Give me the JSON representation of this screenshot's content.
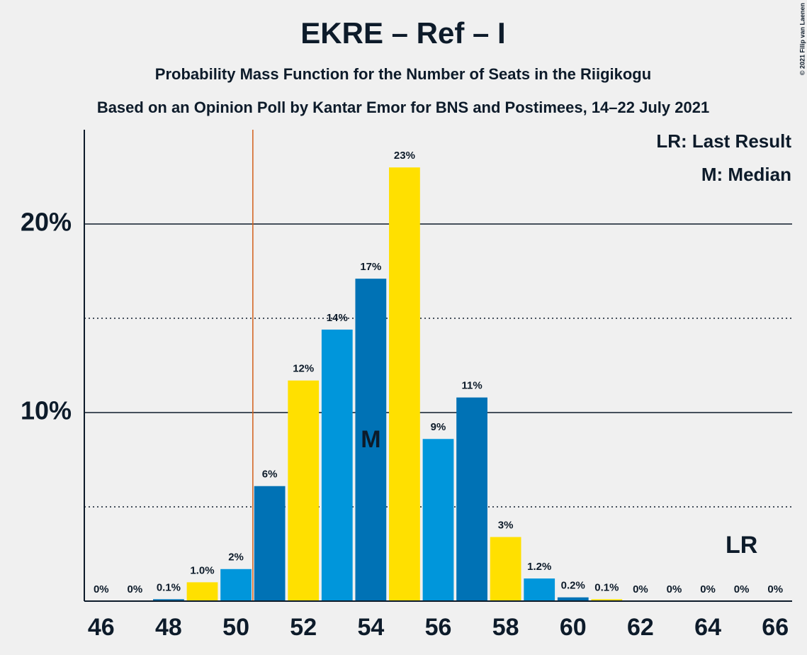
{
  "chart_data": {
    "type": "bar",
    "title": "EKRE – Ref – I",
    "subtitle": "Probability Mass Function for the Number of Seats in the Riigikogu",
    "subtitle2": "Based on an Opinion Poll by Kantar Emor for BNS and Postimees, 14–22 July 2021",
    "copyright": "© 2021 Filip van Laenen",
    "legend": [
      "LR: Last Result",
      "M: Median"
    ],
    "x": [
      46,
      47,
      48,
      49,
      50,
      51,
      52,
      53,
      54,
      55,
      56,
      57,
      58,
      59,
      60,
      61,
      62,
      63,
      64,
      65,
      66
    ],
    "values": [
      0,
      0,
      0.1,
      1.0,
      1.7,
      6.1,
      11.7,
      14.4,
      17.1,
      23.0,
      8.6,
      10.8,
      3.4,
      1.2,
      0.2,
      0.1,
      0,
      0,
      0,
      0,
      0
    ],
    "value_labels": [
      "0%",
      "0%",
      "0.1%",
      "1.0%",
      "2%",
      "6%",
      "12%",
      "14%",
      "17%",
      "23%",
      "9%",
      "11%",
      "3%",
      "1.2%",
      "0.2%",
      "0.1%",
      "0%",
      "0%",
      "0%",
      "0%",
      "0%"
    ],
    "colors": [
      "#0096db",
      "#0072b5",
      "#0072b5",
      "#ffe000",
      "#0096db",
      "#0072b5",
      "#ffe000",
      "#0096db",
      "#0072b5",
      "#ffe000",
      "#0096db",
      "#0072b5",
      "#ffe000",
      "#0096db",
      "#0072b5",
      "#ffe000",
      "#0096db",
      "#0072b5",
      "#ffe000",
      "#0096db",
      "#0072b5"
    ],
    "xlim": [
      45.5,
      66.5
    ],
    "xticks": [
      46,
      48,
      50,
      52,
      54,
      56,
      58,
      60,
      62,
      64,
      66
    ],
    "ylim": [
      0,
      25
    ],
    "yticks": [
      {
        "value": 10,
        "label": "10%"
      },
      {
        "value": 20,
        "label": "20%"
      }
    ],
    "minor_yticks": [
      5,
      15
    ],
    "last_result_line": 50.5,
    "last_result_color": "#d2601a",
    "annotations": [
      {
        "text": "M",
        "x": 54,
        "y": 8.5
      },
      {
        "text": "LR",
        "x": 65,
        "y": 2.9
      }
    ]
  }
}
